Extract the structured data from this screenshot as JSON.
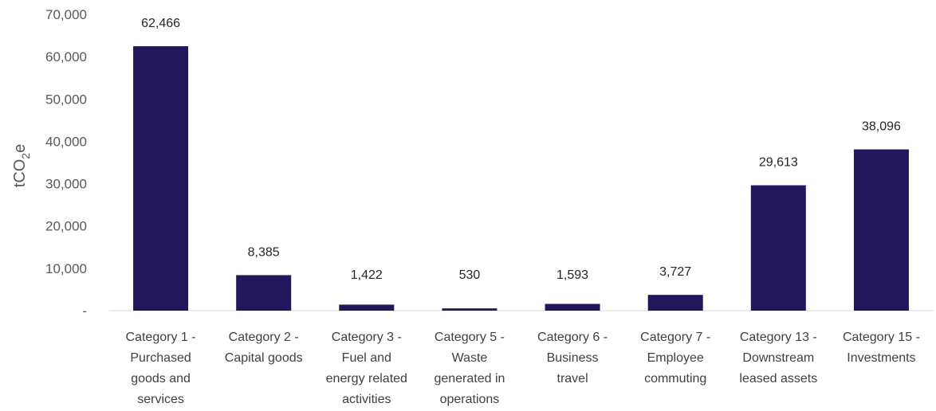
{
  "chart_data": {
    "type": "bar",
    "title": "",
    "xlabel": "",
    "ylabel": "tCO2e",
    "ylabel_parts": {
      "main": "tCO",
      "sub": "2",
      "tail": "e"
    },
    "ylim": [
      0,
      70000
    ],
    "yticks": [
      0,
      10000,
      20000,
      30000,
      40000,
      50000,
      60000,
      70000
    ],
    "ytick_labels": [
      "-",
      "10,000",
      "20,000",
      "30,000",
      "40,000",
      "50,000",
      "60,000",
      "70,000"
    ],
    "grid": false,
    "legend": "none",
    "bar_color": "#22175a",
    "categories": [
      [
        "Category 1 -",
        "Purchased",
        "goods and",
        "services"
      ],
      [
        "Category 2 -",
        "Capital goods"
      ],
      [
        "Category 3 -",
        "Fuel and",
        "energy related",
        "activities"
      ],
      [
        "Category 5 -",
        "Waste",
        "generated in",
        "operations"
      ],
      [
        "Category 6 -",
        "Business",
        "travel"
      ],
      [
        "Category 7 -",
        "Employee",
        "commuting"
      ],
      [
        "Category 13 -",
        "Downstream",
        "leased assets"
      ],
      [
        "Category 15 -",
        "Investments"
      ]
    ],
    "values": [
      62466,
      8385,
      1422,
      530,
      1593,
      3727,
      29613,
      38096
    ],
    "data_labels": [
      "62,466",
      "8,385",
      "1,422",
      "530",
      "1,593",
      "3,727",
      "29,613",
      "38,096"
    ]
  }
}
